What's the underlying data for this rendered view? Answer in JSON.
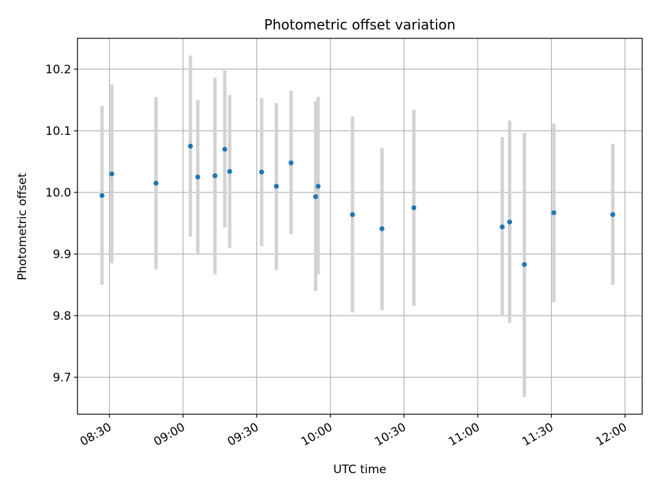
{
  "chart_data": {
    "type": "scatter",
    "title": "Photometric offset variation",
    "xlabel": "UTC time",
    "ylabel": "Photometric offset",
    "x_ticks": [
      "08:30",
      "09:00",
      "09:30",
      "10:00",
      "10:30",
      "11:00",
      "11:30",
      "12:00"
    ],
    "y_ticks": [
      "9.7",
      "9.8",
      "9.9",
      "10.0",
      "10.1",
      "10.2"
    ],
    "xlim": [
      "08:17",
      "12:07"
    ],
    "ylim": [
      9.64,
      10.25
    ],
    "grid": true,
    "marker_color": "#1f77b4",
    "errorbar_color": "#d3d3d3",
    "points": [
      {
        "x": "08:27",
        "y": 9.995,
        "ylow": 9.85,
        "yhigh": 10.14
      },
      {
        "x": "08:31",
        "y": 10.03,
        "ylow": 9.885,
        "yhigh": 10.175
      },
      {
        "x": "08:49",
        "y": 10.015,
        "ylow": 9.875,
        "yhigh": 10.155
      },
      {
        "x": "09:03",
        "y": 10.075,
        "ylow": 9.928,
        "yhigh": 10.222
      },
      {
        "x": "09:06",
        "y": 10.025,
        "ylow": 9.9,
        "yhigh": 10.15
      },
      {
        "x": "09:13",
        "y": 10.027,
        "ylow": 9.867,
        "yhigh": 10.186
      },
      {
        "x": "09:17",
        "y": 10.07,
        "ylow": 9.943,
        "yhigh": 10.198
      },
      {
        "x": "09:19",
        "y": 10.034,
        "ylow": 9.91,
        "yhigh": 10.158
      },
      {
        "x": "09:32",
        "y": 10.033,
        "ylow": 9.913,
        "yhigh": 10.153
      },
      {
        "x": "09:38",
        "y": 10.01,
        "ylow": 9.874,
        "yhigh": 10.145
      },
      {
        "x": "09:44",
        "y": 10.048,
        "ylow": 9.932,
        "yhigh": 10.165
      },
      {
        "x": "09:54",
        "y": 9.993,
        "ylow": 9.84,
        "yhigh": 10.148
      },
      {
        "x": "09:55",
        "y": 10.01,
        "ylow": 9.867,
        "yhigh": 10.155
      },
      {
        "x": "10:09",
        "y": 9.964,
        "ylow": 9.805,
        "yhigh": 10.123
      },
      {
        "x": "10:21",
        "y": 9.941,
        "ylow": 9.809,
        "yhigh": 10.072
      },
      {
        "x": "10:34",
        "y": 9.975,
        "ylow": 9.816,
        "yhigh": 10.134
      },
      {
        "x": "11:10",
        "y": 9.944,
        "ylow": 9.8,
        "yhigh": 10.09
      },
      {
        "x": "11:13",
        "y": 9.952,
        "ylow": 9.788,
        "yhigh": 10.117
      },
      {
        "x": "11:19",
        "y": 9.883,
        "ylow": 9.668,
        "yhigh": 10.097
      },
      {
        "x": "11:31",
        "y": 9.967,
        "ylow": 9.822,
        "yhigh": 10.112
      },
      {
        "x": "11:55",
        "y": 9.964,
        "ylow": 9.85,
        "yhigh": 10.079
      }
    ]
  }
}
